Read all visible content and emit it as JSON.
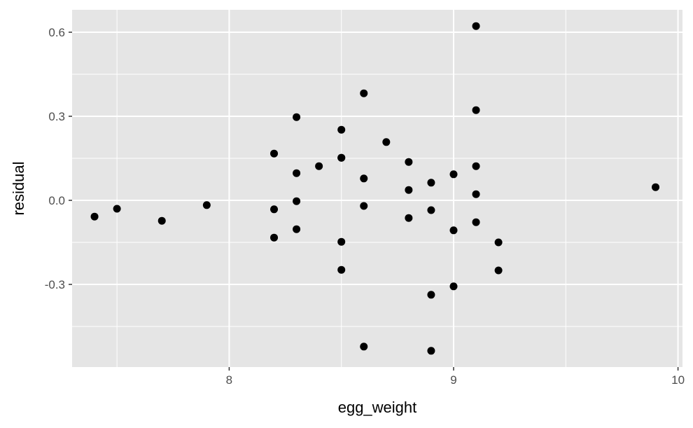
{
  "chart_data": {
    "type": "scatter",
    "title": "",
    "xlabel": "egg_weight",
    "ylabel": "residual",
    "xlim": [
      7.3,
      10.02
    ],
    "ylim": [
      -0.595,
      0.68
    ],
    "x_ticks": [
      8,
      9,
      10
    ],
    "x_tick_labels": [
      "8",
      "9",
      "10"
    ],
    "x_minor_ticks": [
      7.5,
      8.5,
      9.5
    ],
    "y_ticks": [
      0.6,
      0.3,
      0.0,
      -0.3
    ],
    "y_tick_labels": [
      "0.6",
      "0.3",
      "0.0",
      "-0.3"
    ],
    "y_minor_ticks": [
      0.45,
      0.15,
      -0.15,
      -0.45
    ],
    "grid": true,
    "colors": {
      "panel": "#e5e5e5",
      "grid": "#ffffff",
      "point": "#000000"
    },
    "points": [
      {
        "x": 7.4,
        "y": -0.058
      },
      {
        "x": 7.5,
        "y": -0.03
      },
      {
        "x": 7.7,
        "y": -0.073
      },
      {
        "x": 7.9,
        "y": -0.017
      },
      {
        "x": 8.2,
        "y": 0.167
      },
      {
        "x": 8.2,
        "y": -0.032
      },
      {
        "x": 8.2,
        "y": -0.133
      },
      {
        "x": 8.3,
        "y": 0.297
      },
      {
        "x": 8.3,
        "y": 0.097
      },
      {
        "x": 8.3,
        "y": -0.003
      },
      {
        "x": 8.3,
        "y": -0.103
      },
      {
        "x": 8.4,
        "y": 0.122
      },
      {
        "x": 8.5,
        "y": 0.252
      },
      {
        "x": 8.5,
        "y": 0.152
      },
      {
        "x": 8.5,
        "y": 0.152
      },
      {
        "x": 8.5,
        "y": -0.148
      },
      {
        "x": 8.5,
        "y": -0.248
      },
      {
        "x": 8.6,
        "y": 0.382
      },
      {
        "x": 8.6,
        "y": 0.078
      },
      {
        "x": 8.6,
        "y": -0.02
      },
      {
        "x": 8.6,
        "y": -0.522
      },
      {
        "x": 8.7,
        "y": 0.208
      },
      {
        "x": 8.8,
        "y": 0.137
      },
      {
        "x": 8.8,
        "y": 0.037
      },
      {
        "x": 8.8,
        "y": -0.063
      },
      {
        "x": 8.9,
        "y": 0.063
      },
      {
        "x": 8.9,
        "y": -0.035
      },
      {
        "x": 8.9,
        "y": -0.337
      },
      {
        "x": 8.9,
        "y": -0.537
      },
      {
        "x": 9.0,
        "y": 0.093
      },
      {
        "x": 9.0,
        "y": -0.107
      },
      {
        "x": 9.0,
        "y": -0.307
      },
      {
        "x": 9.1,
        "y": 0.622
      },
      {
        "x": 9.1,
        "y": 0.322
      },
      {
        "x": 9.1,
        "y": 0.122
      },
      {
        "x": 9.1,
        "y": 0.022
      },
      {
        "x": 9.1,
        "y": -0.078
      },
      {
        "x": 9.2,
        "y": -0.15
      },
      {
        "x": 9.2,
        "y": -0.25
      },
      {
        "x": 9.9,
        "y": 0.047
      }
    ]
  }
}
